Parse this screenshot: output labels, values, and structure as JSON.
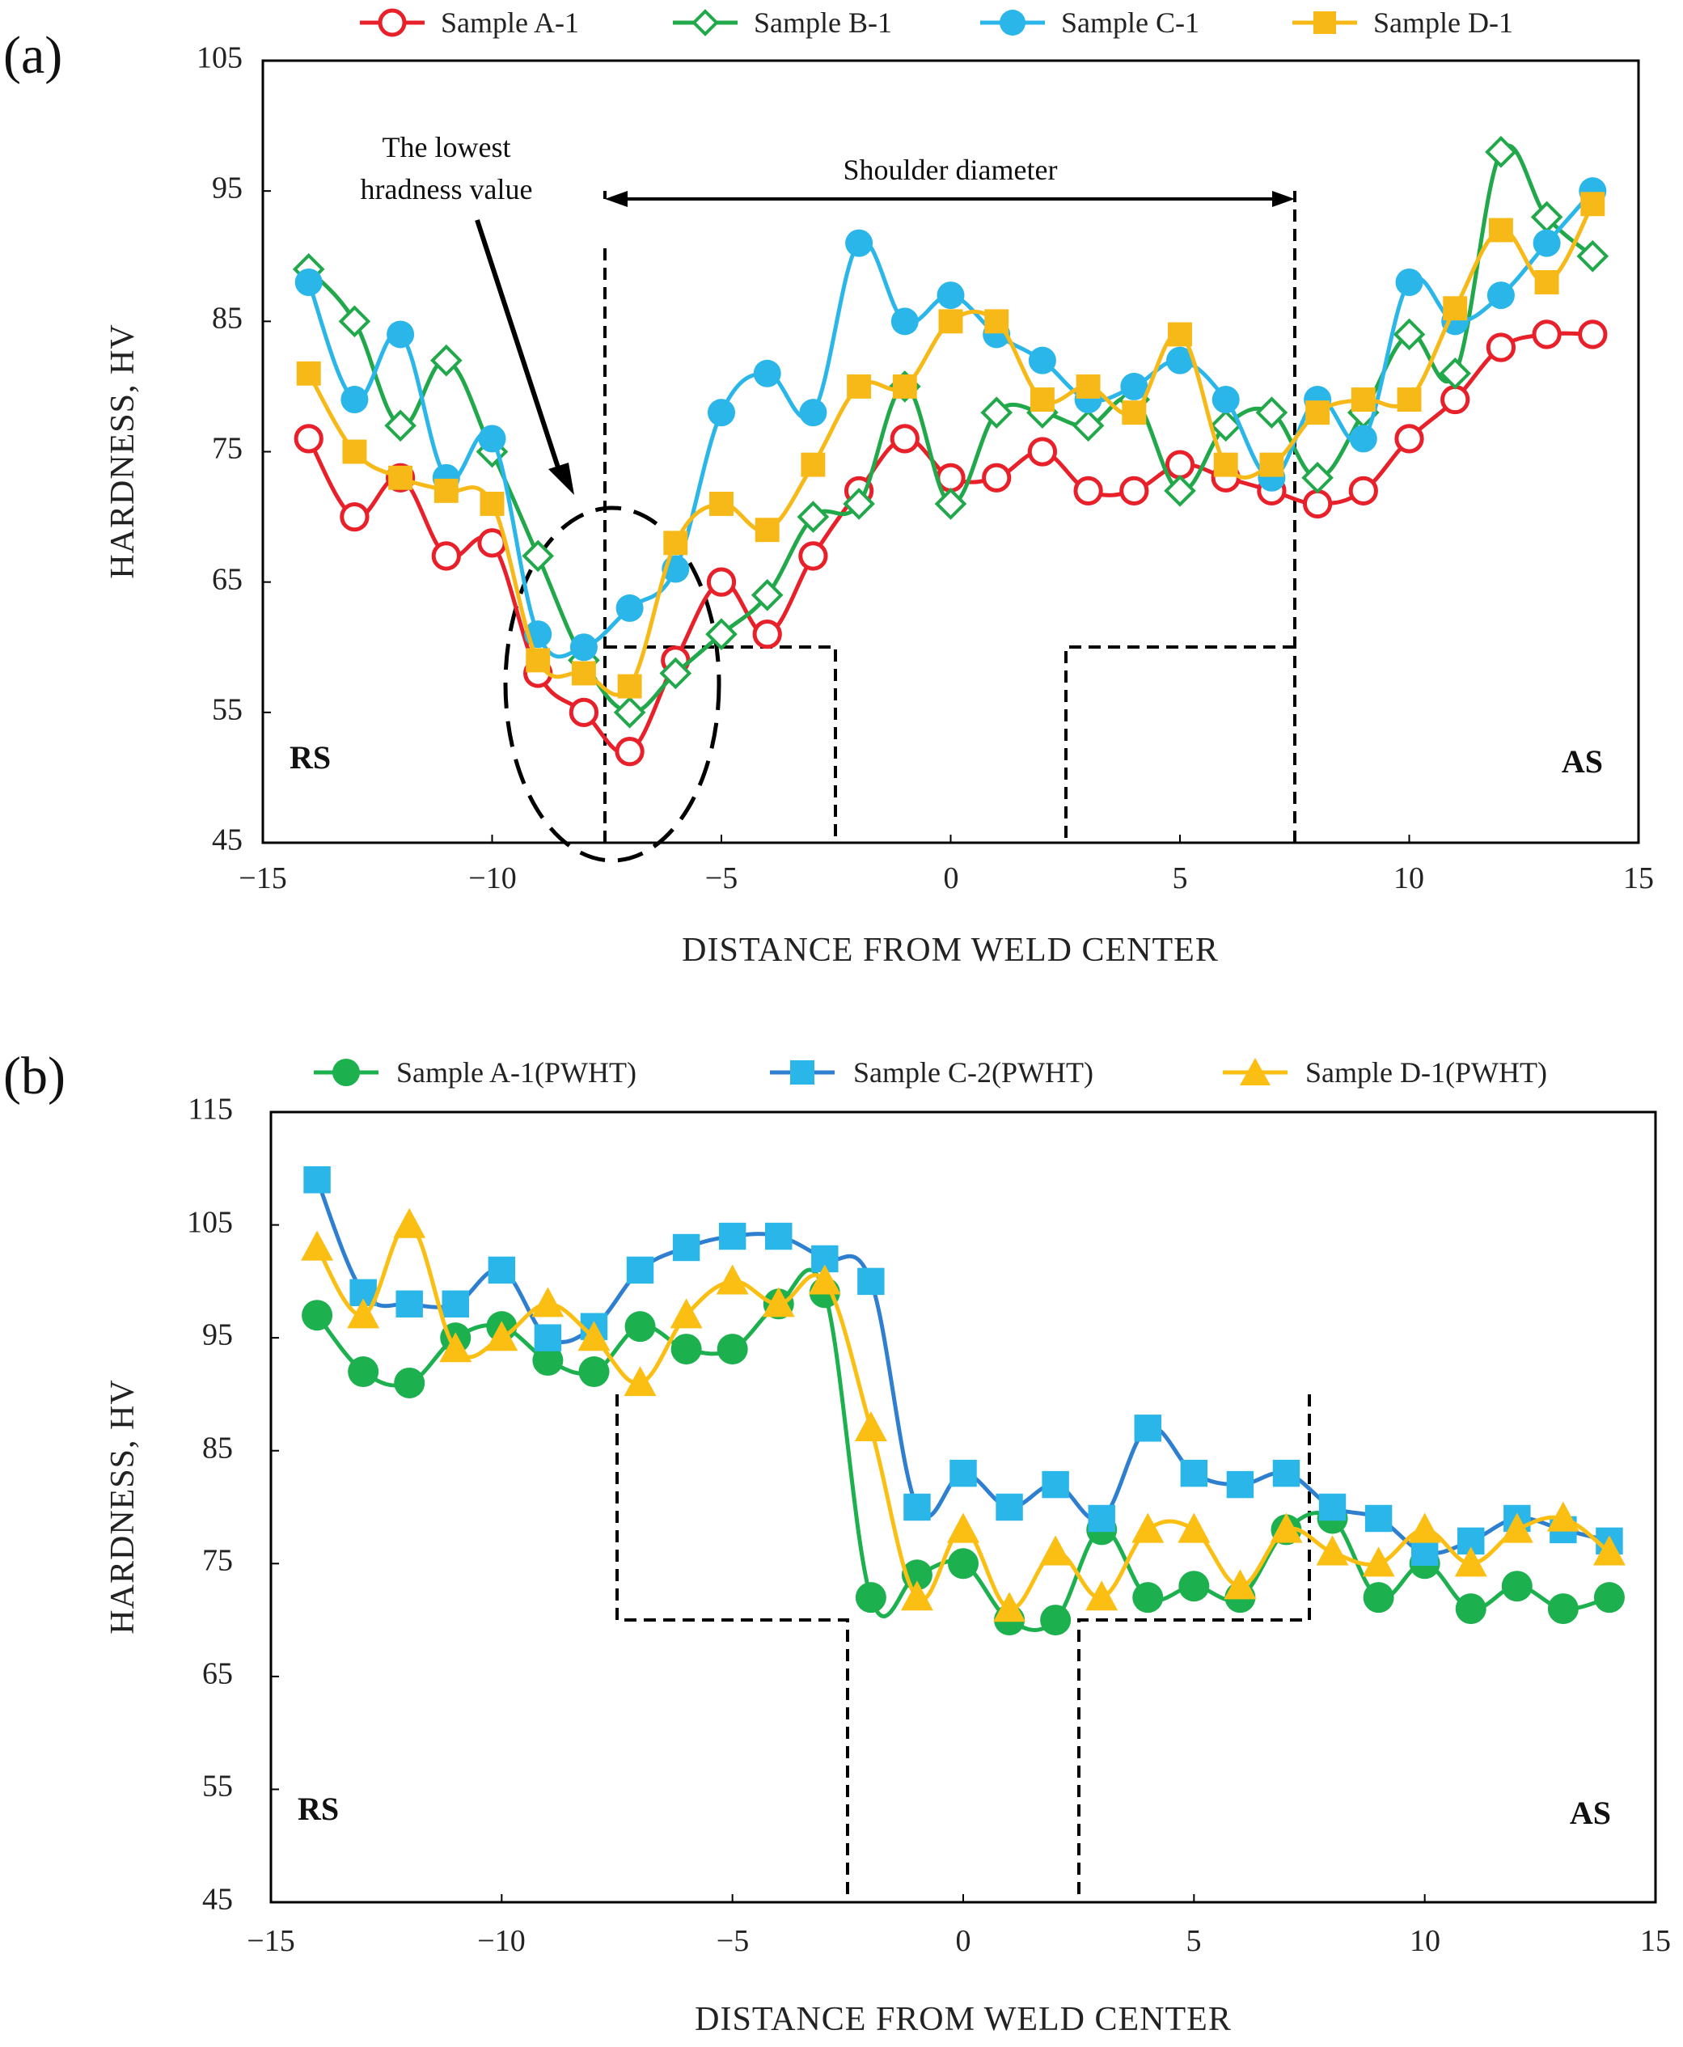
{
  "chart_data": [
    {
      "type": "line",
      "panel_label": "(a)",
      "title": "",
      "xlabel": "DISTANCE FROM WELD CENTER",
      "ylabel": "HARDNESS, HV",
      "xlim": [
        -15,
        15
      ],
      "ylim": [
        45,
        105
      ],
      "xticks": [
        -15,
        -10,
        -5,
        0,
        5,
        10,
        15
      ],
      "xtick_labels": [
        "−15",
        "−10",
        "−5",
        "0",
        "5",
        "10",
        "15"
      ],
      "yticks": [
        45,
        55,
        65,
        75,
        85,
        95,
        105
      ],
      "ytick_labels": [
        "45",
        "55",
        "65",
        "75",
        "85",
        "95",
        "105"
      ],
      "grid": false,
      "legend_position": "top",
      "side_labels": {
        "left": "RS",
        "right": "AS"
      },
      "annotations": {
        "lowest_line1": "The lowest",
        "lowest_line2": "hradness value",
        "shoulder": "Shoulder diameter"
      },
      "x": [
        -14,
        -13,
        -12,
        -11,
        -10,
        -9,
        -8,
        -7,
        -6,
        -5,
        -4,
        -3,
        -2,
        -1,
        0,
        1,
        2,
        3,
        4,
        5,
        6,
        7,
        8,
        9,
        10,
        11,
        12,
        13,
        14
      ],
      "series": [
        {
          "name": "Sample A-1",
          "color": "#e8202a",
          "marker": "circle-open",
          "values": [
            76,
            70,
            73,
            67,
            68,
            58,
            55,
            52,
            59,
            65,
            61,
            67,
            72,
            76,
            73,
            73,
            75,
            72,
            72,
            74,
            73,
            72,
            71,
            72,
            76,
            79,
            83,
            84,
            84
          ]
        },
        {
          "name": "Sample B-1",
          "color": "#21a84a",
          "marker": "diamond-open",
          "values": [
            89,
            85,
            77,
            82,
            75,
            67,
            59,
            55,
            58,
            61,
            64,
            70,
            71,
            80,
            71,
            78,
            78,
            77,
            79,
            72,
            77,
            78,
            73,
            78,
            84,
            81,
            98,
            93,
            90
          ]
        },
        {
          "name": "Sample C-1",
          "color": "#2bb6ea",
          "marker": "circle",
          "values": [
            88,
            79,
            84,
            73,
            76,
            61,
            60,
            63,
            66,
            78,
            81,
            78,
            91,
            85,
            87,
            84,
            82,
            79,
            80,
            82,
            79,
            73,
            79,
            76,
            88,
            85,
            87,
            91,
            95
          ]
        },
        {
          "name": "Sample D-1",
          "color": "#f7b918",
          "marker": "square",
          "values": [
            81,
            75,
            73,
            72,
            71,
            59,
            58,
            57,
            68,
            71,
            69,
            74,
            80,
            80,
            85,
            85,
            79,
            80,
            78,
            84,
            74,
            74,
            78,
            79,
            79,
            86,
            92,
            88,
            94
          ]
        }
      ]
    },
    {
      "type": "line",
      "panel_label": "(b)",
      "title": "",
      "xlabel": "DISTANCE FROM WELD CENTER",
      "ylabel": "HARDNESS, HV",
      "xlim": [
        -15,
        15
      ],
      "ylim": [
        45,
        115
      ],
      "xticks": [
        -15,
        -10,
        -5,
        0,
        5,
        10,
        15
      ],
      "xtick_labels": [
        "−15",
        "−10",
        "−5",
        "0",
        "5",
        "10",
        "15"
      ],
      "yticks": [
        45,
        55,
        65,
        75,
        85,
        95,
        105,
        115
      ],
      "ytick_labels": [
        "45",
        "55",
        "65",
        "75",
        "85",
        "95",
        "105",
        "115"
      ],
      "grid": false,
      "legend_position": "top",
      "side_labels": {
        "left": "RS",
        "right": "AS"
      },
      "x": [
        -14,
        -13,
        -12,
        -11,
        -10,
        -9,
        -8,
        -7,
        -6,
        -5,
        -4,
        -3,
        -2,
        -1,
        0,
        1,
        2,
        3,
        4,
        5,
        6,
        7,
        8,
        9,
        10,
        11,
        12,
        13,
        14
      ],
      "series": [
        {
          "name": "Sample A-1(PWHT)",
          "color": "#1db04e",
          "marker": "circle",
          "values": [
            97,
            92,
            91,
            95,
            96,
            93,
            92,
            96,
            94,
            94,
            98,
            99,
            72,
            74,
            75,
            70,
            70,
            78,
            72,
            73,
            72,
            78,
            79,
            72,
            75,
            71,
            73,
            71,
            72
          ]
        },
        {
          "name": "Sample C-2(PWHT)",
          "color": "#2f7fd1",
          "marker": "square",
          "values": [
            109,
            99,
            98,
            98,
            101,
            95,
            96,
            101,
            103,
            104,
            104,
            102,
            100,
            80,
            83,
            80,
            82,
            79,
            87,
            83,
            82,
            83,
            80,
            79,
            76,
            77,
            79,
            78,
            77
          ]
        },
        {
          "name": "Sample D-1(PWHT)",
          "color": "#fbbe12",
          "marker": "triangle",
          "values": [
            103,
            97,
            105,
            94,
            95,
            98,
            95,
            91,
            97,
            100,
            98,
            100,
            87,
            72,
            78,
            71,
            76,
            72,
            78,
            78,
            73,
            78,
            76,
            75,
            78,
            75,
            78,
            79,
            76
          ]
        }
      ]
    }
  ]
}
